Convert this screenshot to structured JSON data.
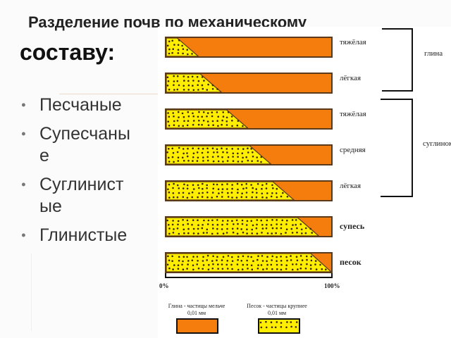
{
  "title": {
    "line1": "Разделение почв по механическому",
    "line2": "составу:"
  },
  "bullets": [
    {
      "line1": "Песчаные",
      "line2": ""
    },
    {
      "line1": "Супесчаны",
      "line2": "е"
    },
    {
      "line1": "Суглинист",
      "line2": "ые"
    },
    {
      "line1": "Глинистые",
      "line2": ""
    }
  ],
  "bullet_mark": "ꔷ",
  "colors": {
    "clay": "#f57d0d",
    "sand": "#ffee00",
    "dots": "#3a2a10",
    "border": "#5a3a1a"
  },
  "diagram": {
    "bars": [
      {
        "label": "тяжёлая",
        "label_bold": false,
        "sand_fraction": 0.13
      },
      {
        "label": "лёгкая",
        "label_bold": false,
        "sand_fraction": 0.27
      },
      {
        "label": "тяжёлая",
        "label_bold": false,
        "sand_fraction": 0.43
      },
      {
        "label": "средняя",
        "label_bold": false,
        "sand_fraction": 0.57
      },
      {
        "label": "лёгкая",
        "label_bold": false,
        "sand_fraction": 0.71
      },
      {
        "label": "супесь",
        "label_bold": true,
        "sand_fraction": 0.86
      },
      {
        "label": "песок",
        "label_bold": true,
        "sand_fraction": 0.94
      }
    ],
    "groups": [
      {
        "label": "глина"
      },
      {
        "label": "суглинок"
      }
    ],
    "axis": {
      "min_label": "0%",
      "max_label": "100%"
    },
    "legend": {
      "clay_text": "Глина - частицы мельче 0,01 мм",
      "sand_text": "Песок - частицы крупнее 0,01 мм"
    }
  }
}
